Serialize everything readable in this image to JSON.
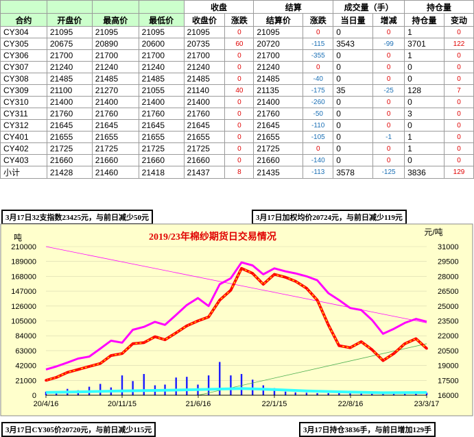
{
  "table": {
    "group_headers": {
      "close": "收盘",
      "settle": "结算",
      "volume": "成交量（手）",
      "oi": "持仓量"
    },
    "headers": [
      "合约",
      "开盘价",
      "最高价",
      "最低价",
      "收盘价",
      "涨跌",
      "结算价",
      "涨跌",
      "当日量",
      "增减",
      "持仓量",
      "变动"
    ],
    "rows": [
      [
        "CY304",
        "21095",
        "21095",
        "21095",
        "21095",
        "0",
        "21095",
        "0",
        "0",
        "0",
        "1",
        "0"
      ],
      [
        "CY305",
        "20675",
        "20890",
        "20600",
        "20735",
        "60",
        "20720",
        "-115",
        "3543",
        "-99",
        "3701",
        "122"
      ],
      [
        "CY306",
        "21700",
        "21700",
        "21700",
        "21700",
        "0",
        "21700",
        "-355",
        "0",
        "0",
        "1",
        "0"
      ],
      [
        "CY307",
        "21240",
        "21240",
        "21240",
        "21240",
        "0",
        "21240",
        "0",
        "0",
        "0",
        "0",
        "0"
      ],
      [
        "CY308",
        "21485",
        "21485",
        "21485",
        "21485",
        "0",
        "21485",
        "-40",
        "0",
        "0",
        "0",
        "0"
      ],
      [
        "CY309",
        "21100",
        "21270",
        "21055",
        "21140",
        "40",
        "21135",
        "-175",
        "35",
        "-25",
        "128",
        "7"
      ],
      [
        "CY310",
        "21400",
        "21400",
        "21400",
        "21400",
        "0",
        "21400",
        "-260",
        "0",
        "0",
        "0",
        "0"
      ],
      [
        "CY311",
        "21760",
        "21760",
        "21760",
        "21760",
        "0",
        "21760",
        "-50",
        "0",
        "0",
        "3",
        "0"
      ],
      [
        "CY312",
        "21645",
        "21645",
        "21645",
        "21645",
        "0",
        "21645",
        "-110",
        "0",
        "0",
        "0",
        "0"
      ],
      [
        "CY401",
        "21655",
        "21655",
        "21655",
        "21655",
        "0",
        "21655",
        "-105",
        "0",
        "-1",
        "1",
        "0"
      ],
      [
        "CY402",
        "21725",
        "21725",
        "21725",
        "21725",
        "0",
        "21725",
        "0",
        "0",
        "0",
        "1",
        "0"
      ],
      [
        "CY403",
        "21660",
        "21660",
        "21660",
        "21660",
        "0",
        "21660",
        "-140",
        "0",
        "0",
        "0",
        "0"
      ],
      [
        "小计",
        "21428",
        "21460",
        "21418",
        "21437",
        "8",
        "21435",
        "-113",
        "3578",
        "-125",
        "3836",
        "129"
      ]
    ]
  },
  "notes": {
    "index": "3月17日32支指数23425元，与前日减少50元",
    "weighted": "3月17日加权均价20724元，与前日减少119元",
    "main": "3月17日CY305价20720元，与前日减少115元",
    "oi": "3月17日持仓3836手，与前日增加129手"
  },
  "colors": {
    "plot_bg": "#ffffcc",
    "pink": "#ff00ff",
    "red": "#ff0000",
    "gold": "#ffd700",
    "green": "#8fc45a",
    "cyan": "#33ffff",
    "blue": "#1a1aff",
    "title": "#e00000"
  },
  "chart_data": {
    "type": "line",
    "title": "2019/23年棉纱期货日交易情况",
    "left_unit": "吨",
    "right_unit": "元/吨",
    "y_left": {
      "ticks": [
        "0",
        "21000",
        "42000",
        "63000",
        "84000",
        "105000",
        "126000",
        "147000",
        "168000",
        "189000",
        "210000"
      ],
      "lim": [
        0,
        210000
      ]
    },
    "y_right": {
      "ticks": [
        "16000",
        "17500",
        "19000",
        "20500",
        "22000",
        "23500",
        "25000",
        "26500",
        "28000",
        "29500",
        "31000"
      ],
      "lim": [
        16000,
        31000
      ]
    },
    "x_ticks": [
      "20/4/16",
      "20/11/15",
      "21/6/16",
      "22/1/15",
      "22/8/16",
      "23/3/17"
    ],
    "x_domain": [
      "2020-04-16",
      "2023-03-17"
    ],
    "series": [
      {
        "key": "index",
        "axis": "right",
        "points": [
          [
            "2020-04-16",
            18600
          ],
          [
            "2020-05-15",
            18900
          ],
          [
            "2020-06-15",
            19300
          ],
          [
            "2020-07-15",
            19700
          ],
          [
            "2020-08-15",
            19900
          ],
          [
            "2020-09-15",
            20700
          ],
          [
            "2020-10-15",
            21500
          ],
          [
            "2020-11-15",
            21300
          ],
          [
            "2020-12-15",
            22600
          ],
          [
            "2021-01-15",
            22900
          ],
          [
            "2021-02-15",
            23400
          ],
          [
            "2021-03-15",
            23100
          ],
          [
            "2021-04-15",
            24100
          ],
          [
            "2021-05-15",
            25100
          ],
          [
            "2021-06-15",
            25800
          ],
          [
            "2021-07-15",
            25000
          ],
          [
            "2021-08-15",
            27200
          ],
          [
            "2021-09-15",
            27800
          ],
          [
            "2021-10-15",
            29400
          ],
          [
            "2021-11-15",
            29100
          ],
          [
            "2021-12-15",
            28200
          ],
          [
            "2022-01-15",
            28800
          ],
          [
            "2022-02-15",
            28500
          ],
          [
            "2022-03-15",
            28300
          ],
          [
            "2022-04-15",
            28000
          ],
          [
            "2022-05-15",
            27600
          ],
          [
            "2022-06-15",
            26300
          ],
          [
            "2022-07-15",
            25600
          ],
          [
            "2022-08-15",
            24800
          ],
          [
            "2022-09-15",
            24600
          ],
          [
            "2022-10-15",
            23600
          ],
          [
            "2022-11-15",
            22200
          ],
          [
            "2022-12-15",
            22700
          ],
          [
            "2023-01-15",
            23300
          ],
          [
            "2023-02-15",
            23700
          ],
          [
            "2023-03-17",
            23425
          ]
        ]
      },
      {
        "key": "price",
        "axis": "right",
        "points": [
          [
            "2020-04-16",
            17500
          ],
          [
            "2020-05-15",
            17800
          ],
          [
            "2020-06-15",
            18300
          ],
          [
            "2020-07-15",
            18600
          ],
          [
            "2020-08-15",
            18900
          ],
          [
            "2020-09-15",
            19200
          ],
          [
            "2020-10-15",
            20000
          ],
          [
            "2020-11-15",
            20200
          ],
          [
            "2020-12-15",
            21200
          ],
          [
            "2021-01-15",
            21300
          ],
          [
            "2021-02-15",
            21900
          ],
          [
            "2021-03-15",
            21600
          ],
          [
            "2021-04-15",
            22300
          ],
          [
            "2021-05-15",
            23000
          ],
          [
            "2021-06-15",
            23500
          ],
          [
            "2021-07-15",
            23900
          ],
          [
            "2021-08-15",
            25600
          ],
          [
            "2021-09-15",
            26600
          ],
          [
            "2021-10-15",
            28800
          ],
          [
            "2021-11-15",
            28300
          ],
          [
            "2021-12-15",
            27200
          ],
          [
            "2022-01-15",
            28200
          ],
          [
            "2022-02-15",
            27900
          ],
          [
            "2022-03-15",
            27500
          ],
          [
            "2022-04-15",
            26800
          ],
          [
            "2022-05-15",
            25600
          ],
          [
            "2022-06-15",
            23100
          ],
          [
            "2022-07-15",
            21000
          ],
          [
            "2022-08-15",
            20800
          ],
          [
            "2022-09-15",
            21400
          ],
          [
            "2022-10-15",
            20600
          ],
          [
            "2022-11-15",
            19500
          ],
          [
            "2022-12-15",
            20200
          ],
          [
            "2023-01-15",
            21200
          ],
          [
            "2023-02-15",
            21700
          ],
          [
            "2023-03-17",
            20720
          ]
        ]
      },
      {
        "key": "oi",
        "axis": "left",
        "points": [
          [
            "2020-04-16",
            4000
          ],
          [
            "2020-08-15",
            5000
          ],
          [
            "2020-11-15",
            6000
          ],
          [
            "2021-03-15",
            7000
          ],
          [
            "2021-06-15",
            8000
          ],
          [
            "2021-10-15",
            9500
          ],
          [
            "2022-01-15",
            8000
          ],
          [
            "2022-04-15",
            6000
          ],
          [
            "2022-08-15",
            4500
          ],
          [
            "2022-11-15",
            3500
          ],
          [
            "2023-03-17",
            3836
          ]
        ]
      },
      {
        "key": "trend_pink",
        "axis": "right",
        "points": [
          [
            "2020-04-16",
            31000
          ],
          [
            "2023-03-17",
            23300
          ]
        ]
      },
      {
        "key": "trend_green",
        "axis": "right",
        "points": [
          [
            "2021-06-16",
            16000
          ],
          [
            "2023-03-17",
            21200
          ]
        ]
      }
    ],
    "volume_bars": {
      "axis": "left",
      "points": [
        [
          "2020-04-16",
          5000
        ],
        [
          "2020-05-15",
          4000
        ],
        [
          "2020-06-15",
          9000
        ],
        [
          "2020-07-15",
          7000
        ],
        [
          "2020-08-15",
          12000
        ],
        [
          "2020-09-15",
          16000
        ],
        [
          "2020-10-15",
          11000
        ],
        [
          "2020-11-15",
          28000
        ],
        [
          "2020-12-15",
          20000
        ],
        [
          "2021-01-15",
          30000
        ],
        [
          "2021-02-15",
          14000
        ],
        [
          "2021-03-15",
          15000
        ],
        [
          "2021-04-15",
          25000
        ],
        [
          "2021-05-15",
          26000
        ],
        [
          "2021-06-15",
          15000
        ],
        [
          "2021-07-15",
          28000
        ],
        [
          "2021-08-15",
          47000
        ],
        [
          "2021-09-15",
          28000
        ],
        [
          "2021-10-15",
          30000
        ],
        [
          "2021-11-15",
          22000
        ],
        [
          "2021-12-15",
          14000
        ],
        [
          "2022-01-15",
          10000
        ],
        [
          "2022-02-15",
          5000
        ],
        [
          "2022-03-15",
          4000
        ],
        [
          "2022-04-15",
          3500
        ],
        [
          "2022-05-15",
          3000
        ],
        [
          "2022-06-15",
          3000
        ],
        [
          "2022-07-15",
          3500
        ],
        [
          "2022-08-15",
          3000
        ],
        [
          "2022-09-15",
          2500
        ],
        [
          "2022-10-15",
          3000
        ],
        [
          "2022-11-15",
          3000
        ],
        [
          "2022-12-15",
          3000
        ],
        [
          "2023-01-15",
          3500
        ],
        [
          "2023-02-15",
          4000
        ],
        [
          "2023-03-17",
          3578
        ]
      ]
    }
  }
}
